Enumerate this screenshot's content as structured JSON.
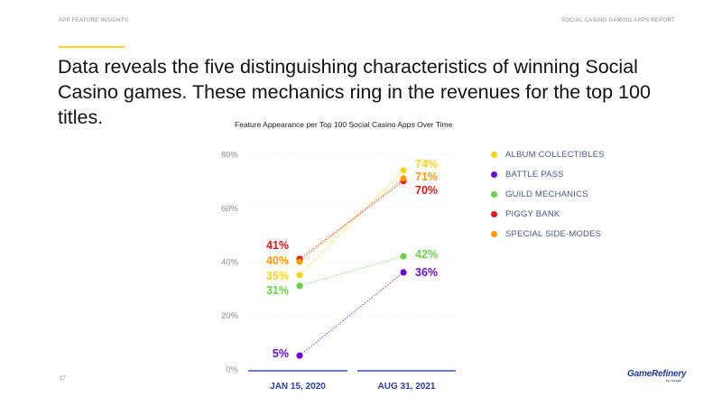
{
  "header": {
    "left": "APP FEATURE INSIGHTS",
    "right": "SOCIAL CASINO GAMING APPS REPORT"
  },
  "headline": "Data reveals the five distinguishing characteristics of winning Social Casino games. These mechanics ring in the revenues for the top 100 titles.",
  "page_number": "17",
  "logo": {
    "name": "GameRefinery",
    "sub": "by vungle"
  },
  "colors": {
    "accent": "#ffd21e",
    "axis": "#3f51c8",
    "tick": "#8a8f99"
  },
  "chart_data": {
    "type": "line",
    "title": "Feature Appearance per Top 100 Social Casino Apps Over Time",
    "categories": [
      "JAN 15, 2020",
      "AUG 31, 2021"
    ],
    "ylim": [
      0,
      80
    ],
    "yticks": [
      "0%",
      "20%",
      "40%",
      "60%",
      "80%"
    ],
    "grid": true,
    "legend_position": "right",
    "series": [
      {
        "name": "ALBUM COLLECTIBLES",
        "color": "#ffd21e",
        "values": [
          35,
          74
        ],
        "labels": [
          "35%",
          "74%"
        ]
      },
      {
        "name": "BATTLE PASS",
        "color": "#6a0dd6",
        "values": [
          5,
          36
        ],
        "labels": [
          "5%",
          "36%"
        ]
      },
      {
        "name": "GUILD MECHANICS",
        "color": "#6bd04a",
        "values": [
          31,
          42
        ],
        "labels": [
          "31%",
          "42%"
        ]
      },
      {
        "name": "PIGGY BANK",
        "color": "#e01b1b",
        "values": [
          41,
          70
        ],
        "labels": [
          "41%",
          "70%"
        ]
      },
      {
        "name": "SPECIAL SIDE-MODES",
        "color": "#ff9a00",
        "values": [
          40,
          71
        ],
        "labels": [
          "40%",
          "71%"
        ]
      }
    ]
  }
}
